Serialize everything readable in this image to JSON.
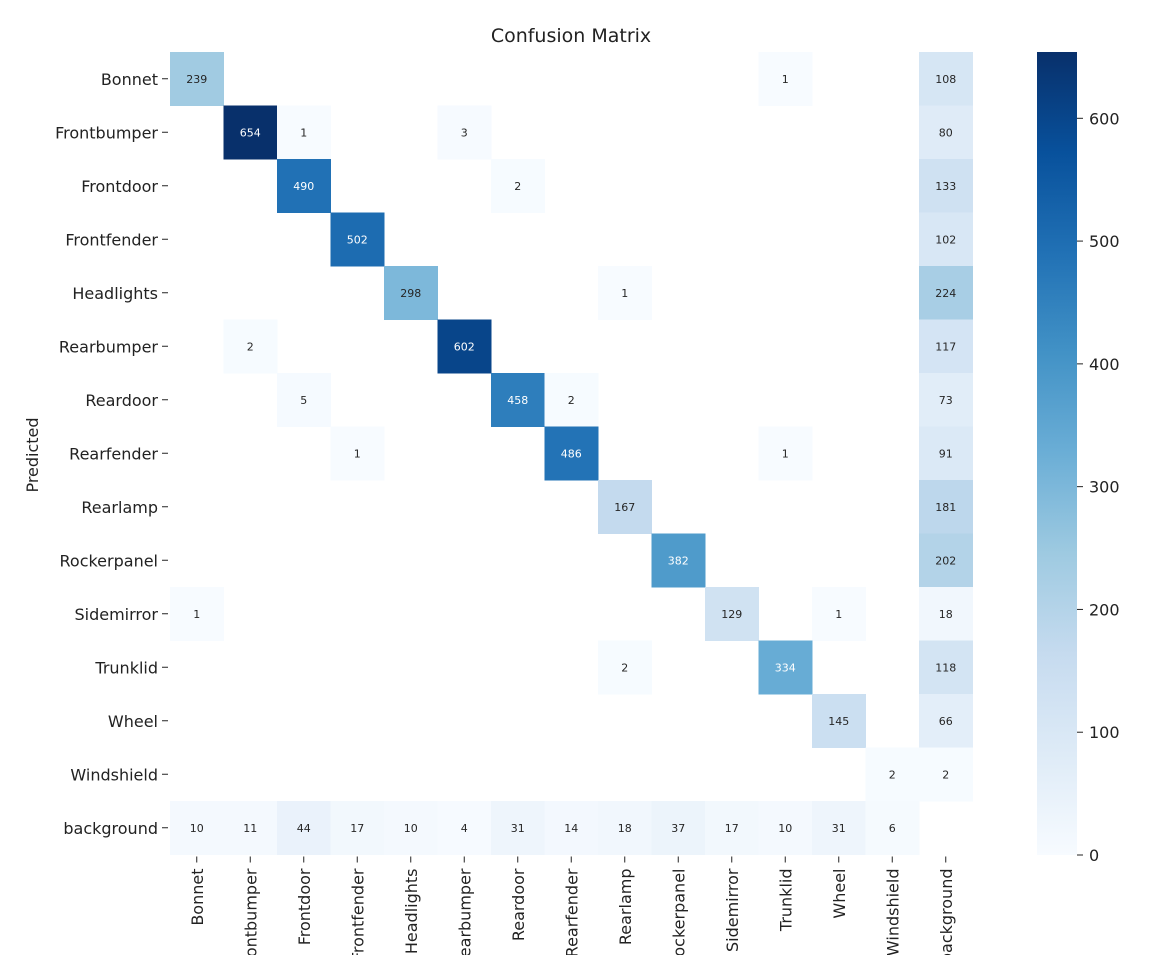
{
  "chart_data": {
    "type": "heatmap",
    "title": "Confusion Matrix",
    "xlabel": "",
    "ylabel": "Predicted",
    "x_categories": [
      "Bonnet",
      "Frontbumper",
      "Frontdoor",
      "Frontfender",
      "Headlights",
      "Rearbumper",
      "Reardoor",
      "Rearfender",
      "Rearlamp",
      "Rockerpanel",
      "Sidemirror",
      "Trunklid",
      "Wheel",
      "Windshield",
      "background"
    ],
    "y_categories": [
      "Bonnet",
      "Frontbumper",
      "Frontdoor",
      "Frontfender",
      "Headlights",
      "Rearbumper",
      "Reardoor",
      "Rearfender",
      "Rearlamp",
      "Rockerpanel",
      "Sidemirror",
      "Trunklid",
      "Wheel",
      "Windshield",
      "background"
    ],
    "values": [
      [
        239,
        0,
        0,
        0,
        0,
        0,
        0,
        0,
        0,
        0,
        0,
        1,
        0,
        0,
        108
      ],
      [
        0,
        654,
        1,
        0,
        0,
        3,
        0,
        0,
        0,
        0,
        0,
        0,
        0,
        0,
        80
      ],
      [
        0,
        0,
        490,
        0,
        0,
        0,
        2,
        0,
        0,
        0,
        0,
        0,
        0,
        0,
        133
      ],
      [
        0,
        0,
        0,
        502,
        0,
        0,
        0,
        0,
        0,
        0,
        0,
        0,
        0,
        0,
        102
      ],
      [
        0,
        0,
        0,
        0,
        298,
        0,
        0,
        0,
        1,
        0,
        0,
        0,
        0,
        0,
        224
      ],
      [
        0,
        2,
        0,
        0,
        0,
        602,
        0,
        0,
        0,
        0,
        0,
        0,
        0,
        0,
        117
      ],
      [
        0,
        0,
        5,
        0,
        0,
        0,
        458,
        2,
        0,
        0,
        0,
        0,
        0,
        0,
        73
      ],
      [
        0,
        0,
        0,
        1,
        0,
        0,
        0,
        486,
        0,
        0,
        0,
        1,
        0,
        0,
        91
      ],
      [
        0,
        0,
        0,
        0,
        0,
        0,
        0,
        0,
        167,
        0,
        0,
        0,
        0,
        0,
        181
      ],
      [
        0,
        0,
        0,
        0,
        0,
        0,
        0,
        0,
        0,
        382,
        0,
        0,
        0,
        0,
        202
      ],
      [
        1,
        0,
        0,
        0,
        0,
        0,
        0,
        0,
        0,
        0,
        129,
        0,
        1,
        0,
        18
      ],
      [
        0,
        0,
        0,
        0,
        0,
        0,
        0,
        0,
        2,
        0,
        0,
        334,
        0,
        0,
        118
      ],
      [
        0,
        0,
        0,
        0,
        0,
        0,
        0,
        0,
        0,
        0,
        0,
        0,
        145,
        0,
        66
      ],
      [
        0,
        0,
        0,
        0,
        0,
        0,
        0,
        0,
        0,
        0,
        0,
        0,
        0,
        2,
        2
      ],
      [
        10,
        11,
        44,
        17,
        10,
        4,
        31,
        14,
        18,
        37,
        17,
        10,
        31,
        6,
        null
      ]
    ],
    "colorbar": {
      "vmin": 0,
      "vmax": 654,
      "ticks": [
        0,
        100,
        200,
        300,
        400,
        500,
        600
      ],
      "colormap": "Blues"
    },
    "grid": false,
    "legend": "colorbar-right"
  },
  "colors": {
    "background": "#ffffff",
    "text": "#222222",
    "cmap_low": "#f7fbff",
    "cmap_high": "#08306b"
  }
}
